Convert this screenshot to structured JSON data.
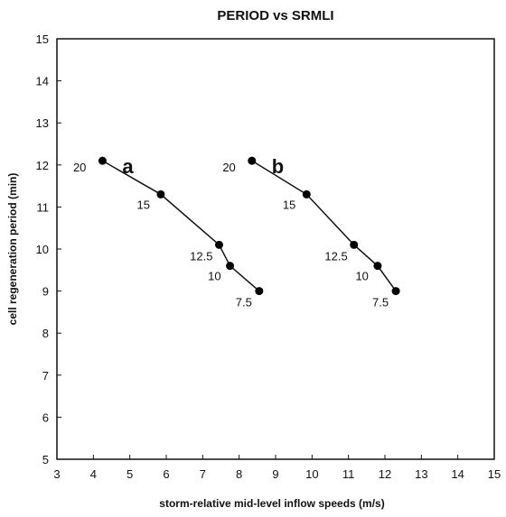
{
  "chart_data": {
    "type": "line",
    "title": "PERIOD vs SRMLI",
    "xlabel": "storm-relative mid-level inflow speeds (m/s)",
    "ylabel": "cell regeneration period (min)",
    "xlim": [
      3,
      15
    ],
    "ylim": [
      5,
      15
    ],
    "xticks": [
      "3",
      "4",
      "5",
      "6",
      "7",
      "8",
      "9",
      "10",
      "11",
      "12",
      "13",
      "14",
      "15"
    ],
    "yticks": [
      "5",
      "6",
      "7",
      "8",
      "9",
      "10",
      "11",
      "12",
      "13",
      "14",
      "15"
    ],
    "grid": false,
    "series": [
      {
        "name": "a",
        "x": [
          4.25,
          5.85,
          7.45,
          7.75,
          8.55
        ],
        "y": [
          12.1,
          11.3,
          10.1,
          9.6,
          9.0
        ],
        "point_labels": [
          "20",
          "15",
          "12.5",
          "10",
          "7.5"
        ]
      },
      {
        "name": "b",
        "x": [
          8.35,
          9.85,
          11.15,
          11.8,
          12.3
        ],
        "y": [
          12.1,
          11.3,
          10.1,
          9.6,
          9.0
        ],
        "point_labels": [
          "20",
          "15",
          "12.5",
          "10",
          "7.5"
        ]
      }
    ]
  }
}
